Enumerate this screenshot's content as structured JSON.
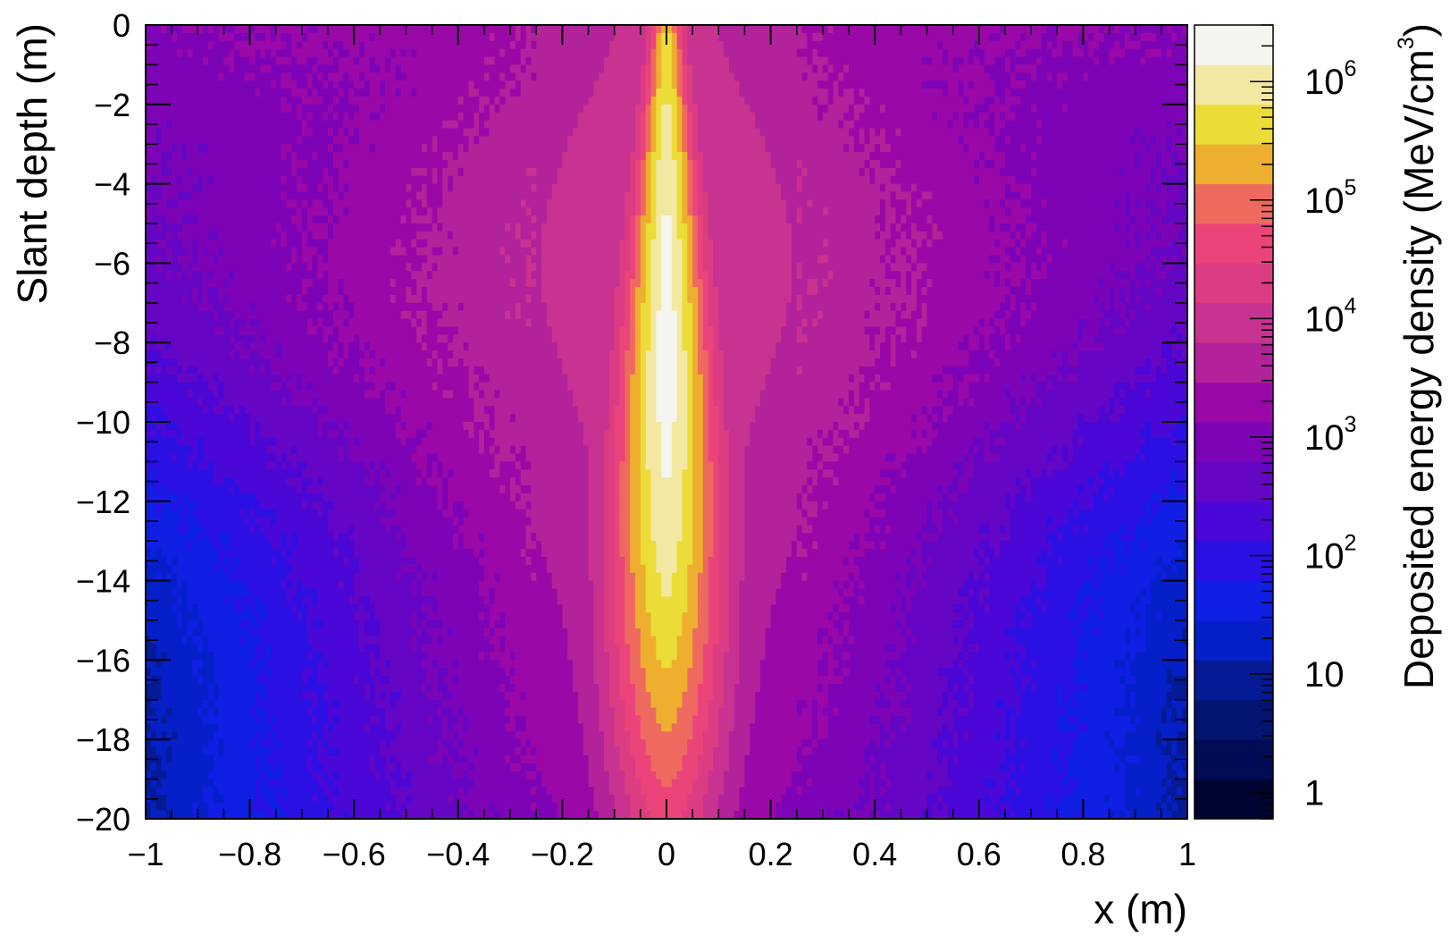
{
  "chart_data": {
    "type": "heatmap",
    "xlabel": "x (m)",
    "ylabel": "Slant depth (m)",
    "zlabel": "Deposited energy density (MeV/cm",
    "zlabel_exponent": "3",
    "zlabel_close": ")",
    "xlim": [
      -1,
      1
    ],
    "ylim": [
      -20,
      0
    ],
    "zlim": [
      0.6,
      3000000
    ],
    "z_scale": "log",
    "x_ticks": [
      -1,
      -0.8,
      -0.6,
      -0.4,
      -0.2,
      0,
      0.2,
      0.4,
      0.6,
      0.8,
      1
    ],
    "x_tick_labels": [
      "−1",
      "−0.8",
      "−0.6",
      "−0.4",
      "−0.2",
      "0",
      "0.2",
      "0.4",
      "0.6",
      "0.8",
      "1"
    ],
    "y_ticks": [
      0,
      -2,
      -4,
      -6,
      -8,
      -10,
      -12,
      -14,
      -16,
      -18,
      -20
    ],
    "y_tick_labels": [
      "0",
      "−2",
      "−4",
      "−6",
      "−8",
      "−10",
      "−12",
      "−14",
      "−16",
      "−18",
      "−20"
    ],
    "z_ticks": [
      {
        "value": 1,
        "base": "1",
        "exp": ""
      },
      {
        "value": 10,
        "base": "10",
        "exp": ""
      },
      {
        "value": 100,
        "base": "10",
        "exp": "2"
      },
      {
        "value": 1000,
        "base": "10",
        "exp": "3"
      },
      {
        "value": 10000,
        "base": "10",
        "exp": "4"
      },
      {
        "value": 100000,
        "base": "10",
        "exp": "5"
      },
      {
        "value": 1000000,
        "base": "10",
        "exp": "6"
      }
    ],
    "palette": [
      "#000432",
      "#020b55",
      "#031471",
      "#041b95",
      "#0520c8",
      "#0f1fe3",
      "#2a10e3",
      "#4a07d6",
      "#6406c4",
      "#7d04b6",
      "#9a08a8",
      "#b2229a",
      "#c83290",
      "#dc3c82",
      "#ea447a",
      "#ee6a5e",
      "#eeae2e",
      "#ecdc38",
      "#f3e8a2",
      "#f4f5ef"
    ],
    "shower": {
      "axis_x": 0.0,
      "core_peak_depth": -8.0,
      "core_peak_density": 2000000,
      "halo_density_at_axis": 10000,
      "background_density_near_surface": 1000,
      "background_density_at_bottom_edge": 30
    }
  }
}
